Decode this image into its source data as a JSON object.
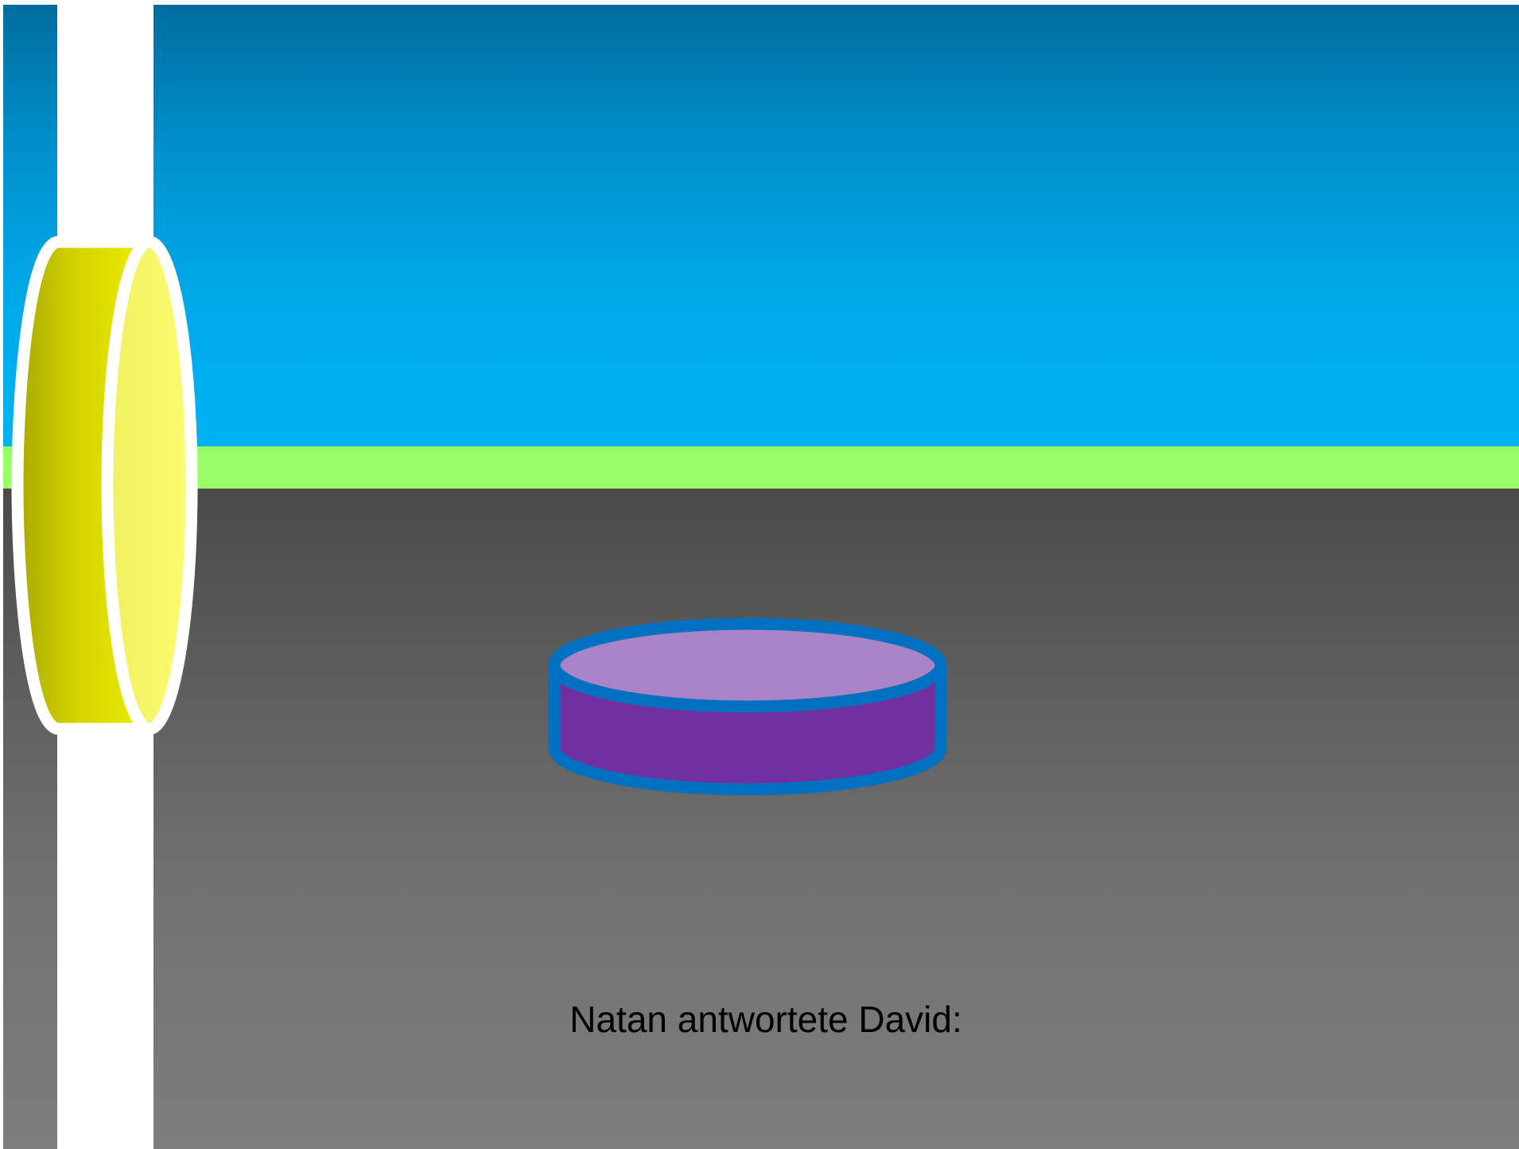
{
  "slide": {
    "caption": "Natan antwortete David:"
  },
  "colors": {
    "sky_top": "#006d9e",
    "sky_bottom": "#00b2f2",
    "grass": "#99ff66",
    "ground_top": "#4a4a4a",
    "ground_bottom": "#7d7d7d",
    "pillar": "#ffffff",
    "yellow_disk_dark": "#a8a800",
    "yellow_disk_bright": "#eeee00",
    "yellow_disk_face": "#f9f978",
    "purple_disk_top": "#a883c6",
    "purple_disk_side": "#7030a0",
    "purple_disk_outline": "#0070c0"
  }
}
